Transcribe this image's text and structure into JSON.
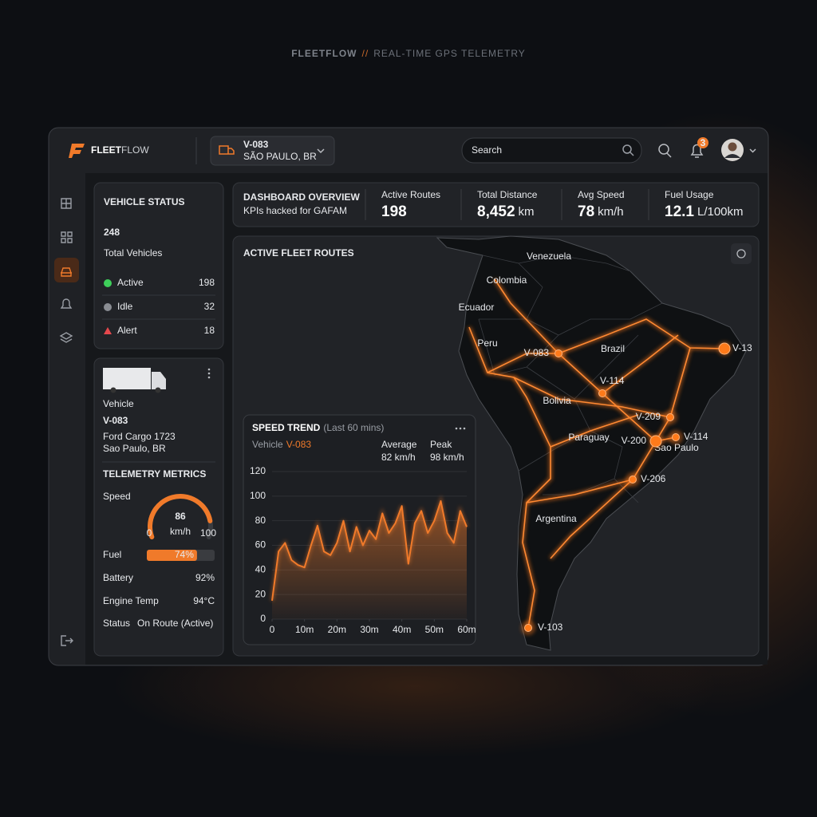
{
  "page_heading": {
    "brand": "FLEETFLOW",
    "separator": "//",
    "tagline": "REAL-TIME GPS TELEMETRY"
  },
  "header": {
    "brand_bold": "FLEET",
    "brand_light": "FLOW",
    "vehicle_id": "V-083",
    "vehicle_location": "SÃO PAULO, BR",
    "search_placeholder": "Search",
    "notifications": 3
  },
  "vehicle_status": {
    "title": "VEHICLE STATUS",
    "total": 248,
    "total_label": "Total Vehicles",
    "rows": [
      {
        "label": "Active",
        "value": 198,
        "color": "#3ecf5a"
      },
      {
        "label": "Idle",
        "value": 32,
        "color": "#f08a3c"
      },
      {
        "label": "Alert",
        "value": 18,
        "color": "#e5484d"
      }
    ]
  },
  "vehicle": {
    "label": "Vehicle",
    "id": "V-083",
    "model": "Ford Cargo 1723",
    "location": "Sao Paulo, BR"
  },
  "telemetry": {
    "title": "TELEMETRY METRICS",
    "speed": {
      "label": "Speed",
      "value": 86,
      "unit": "km/h",
      "min": 0,
      "max": 100
    },
    "fuel": {
      "label": "Fuel",
      "value": 74,
      "value_label": "74%"
    },
    "rows": [
      {
        "label": "Battery",
        "value": "92%"
      },
      {
        "label": "Engine Temp",
        "value": "94°C"
      }
    ],
    "status": {
      "label": "Status",
      "value": "On Route (Active)"
    }
  },
  "overview": {
    "title": "DASHBOARD OVERVIEW",
    "subtitle": "KPIs hacked for GAFAM",
    "kpis": [
      {
        "label": "Active Routes",
        "value": 198
      },
      {
        "label": "Total Distance",
        "value": "8,452",
        "unit": "km"
      },
      {
        "label": "Avg Speed",
        "value": 78,
        "unit": "km/h"
      },
      {
        "label": "Fuel Usage",
        "value": 12.1,
        "unit": "L/100km"
      }
    ]
  },
  "map": {
    "title": "ACTIVE FLEET ROUTES",
    "regions": [
      "Venezuela",
      "Colombia",
      "Ecuador",
      "Peru",
      "Brazil",
      "Bolivia",
      "Paraguay",
      "Argentina",
      "Sao Paulo"
    ],
    "vehicles": [
      "V-083",
      "V-114",
      "V-209",
      "V-200",
      "V-114",
      "V-13",
      "V-206",
      "V-103"
    ]
  },
  "speed_panel": {
    "vehicle_label": "Vehicle",
    "vehicle_id": "V-083",
    "stats": [
      {
        "label": "Average",
        "value": "82 km/h"
      },
      {
        "label": "Peak",
        "value": "98 km/h"
      }
    ]
  },
  "chart_data": {
    "type": "line",
    "title": "SPEED TREND",
    "subtitle": "(Last 60 mins)",
    "color": "#f07a2a",
    "x": [
      0,
      2,
      4,
      6,
      8,
      10,
      12,
      14,
      16,
      18,
      20,
      22,
      24,
      26,
      28,
      30,
      32,
      34,
      36,
      38,
      40,
      42,
      44,
      46,
      48,
      50,
      52,
      54,
      56,
      58,
      60
    ],
    "values": [
      15,
      55,
      62,
      48,
      44,
      42,
      60,
      76,
      55,
      52,
      62,
      80,
      55,
      75,
      60,
      72,
      65,
      86,
      70,
      78,
      92,
      45,
      78,
      88,
      70,
      80,
      96,
      70,
      62,
      88,
      75
    ],
    "xlim": [
      0,
      60
    ],
    "ylim": [
      0,
      120
    ],
    "xticks": [
      0,
      {
        "value": 10,
        "label": "10m"
      },
      {
        "value": 20,
        "label": "20m"
      },
      {
        "value": 30,
        "label": "30m"
      },
      {
        "value": 40,
        "label": "40m"
      },
      {
        "value": 50,
        "label": "50m"
      },
      {
        "value": 60,
        "label": "60m"
      }
    ],
    "yticks": [
      0,
      20,
      40,
      60,
      80,
      100,
      120
    ],
    "grid": true
  }
}
